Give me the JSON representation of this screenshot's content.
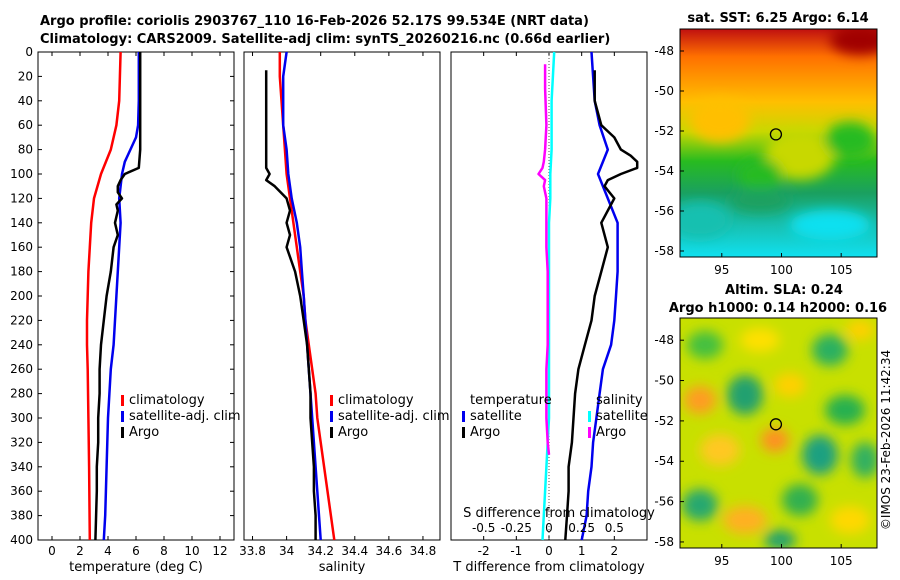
{
  "header": {
    "line1": "Argo profile: coriolis 2903767_110 16-Feb-2026 52.17S 99.534E (NRT data)",
    "line2": "Climatology: CARS2009. Satellite-adj clim: synTS_20260216.nc (0.66d earlier)"
  },
  "colors": {
    "climatology": "#ff0000",
    "satellite": "#0000ee",
    "argo": "#000000",
    "t_diff": "#ff00ff",
    "s_diff": "#00ffff",
    "marker": "#000000"
  },
  "chart_data": [
    {
      "type": "line",
      "panel": "temperature",
      "xlabel": "temperature (deg C)",
      "ylabel": "",
      "xlim": [
        -1,
        13
      ],
      "ylim": [
        400,
        0
      ],
      "xticks": [
        "0",
        "2",
        "4",
        "6",
        "8",
        "10",
        "12"
      ],
      "yticks": [
        "0",
        "20",
        "40",
        "60",
        "80",
        "100",
        "120",
        "140",
        "160",
        "180",
        "200",
        "220",
        "240",
        "260",
        "280",
        "300",
        "320",
        "340",
        "360",
        "380",
        "400"
      ],
      "legend": [
        "climatology",
        "satellite-adj. clim",
        "Argo"
      ],
      "series": [
        {
          "name": "climatology",
          "depth": [
            0,
            20,
            40,
            60,
            80,
            100,
            120,
            140,
            160,
            180,
            200,
            220,
            240,
            260,
            300,
            340,
            400
          ],
          "values": [
            4.9,
            4.85,
            4.8,
            4.6,
            4.2,
            3.5,
            3.0,
            2.8,
            2.7,
            2.6,
            2.55,
            2.5,
            2.5,
            2.55,
            2.6,
            2.65,
            2.7
          ]
        },
        {
          "name": "satellite-adj. clim",
          "depth": [
            0,
            20,
            40,
            60,
            70,
            80,
            90,
            100,
            110,
            120,
            140,
            160,
            180,
            200,
            220,
            240,
            260,
            280,
            300,
            320,
            340,
            360,
            380,
            400
          ],
          "values": [
            6.2,
            6.2,
            6.2,
            6.15,
            6.0,
            5.6,
            5.2,
            5.0,
            4.9,
            4.8,
            4.9,
            4.8,
            4.7,
            4.6,
            4.5,
            4.4,
            4.2,
            4.1,
            4.0,
            3.95,
            3.9,
            3.85,
            3.8,
            3.7
          ]
        },
        {
          "name": "Argo",
          "depth": [
            0,
            20,
            40,
            60,
            80,
            95,
            100,
            105,
            110,
            115,
            120,
            125,
            130,
            140,
            150,
            160,
            180,
            200,
            220,
            240,
            260,
            280,
            300,
            320,
            340,
            360,
            380,
            400
          ],
          "values": [
            6.3,
            6.3,
            6.3,
            6.3,
            6.3,
            6.2,
            5.2,
            4.9,
            4.7,
            4.7,
            5.0,
            4.6,
            4.7,
            4.5,
            4.7,
            4.4,
            4.2,
            3.9,
            3.7,
            3.5,
            3.4,
            3.4,
            3.3,
            3.3,
            3.2,
            3.2,
            3.15,
            3.1
          ]
        }
      ]
    },
    {
      "type": "line",
      "panel": "salinity",
      "xlabel": "salinity",
      "xlim": [
        33.75,
        34.9
      ],
      "ylim": [
        400,
        0
      ],
      "xticks": [
        "33.8",
        "34",
        "34.2",
        "34.4",
        "34.6",
        "34.8"
      ],
      "legend": [
        "climatology",
        "satellite-adj. clim",
        "Argo"
      ],
      "series": [
        {
          "name": "climatology",
          "depth": [
            0,
            20,
            40,
            60,
            80,
            100,
            120,
            140,
            160,
            180,
            200,
            220,
            240,
            260,
            280,
            300,
            320,
            340,
            360,
            380,
            400
          ],
          "values": [
            33.96,
            33.96,
            33.97,
            33.98,
            33.99,
            34.0,
            34.02,
            34.04,
            34.06,
            34.08,
            34.1,
            34.11,
            34.13,
            34.15,
            34.17,
            34.18,
            34.2,
            34.22,
            34.24,
            34.26,
            34.28
          ]
        },
        {
          "name": "satellite-adj. clim",
          "depth": [
            0,
            10,
            20,
            40,
            60,
            80,
            100,
            120,
            140,
            160,
            180,
            200,
            220,
            240,
            260,
            280,
            300,
            320,
            340,
            360,
            380,
            400
          ],
          "values": [
            34.0,
            33.99,
            33.98,
            33.98,
            33.98,
            34.0,
            34.01,
            34.03,
            34.06,
            34.08,
            34.09,
            34.1,
            34.11,
            34.12,
            34.13,
            34.14,
            34.15,
            34.16,
            34.17,
            34.18,
            34.19,
            34.2
          ]
        },
        {
          "name": "Argo",
          "depth": [
            15,
            40,
            60,
            80,
            90,
            95,
            100,
            105,
            110,
            120,
            130,
            140,
            150,
            160,
            180,
            200,
            220,
            240,
            260,
            280,
            300,
            320,
            340,
            360,
            380,
            400
          ],
          "values": [
            33.88,
            33.88,
            33.88,
            33.88,
            33.88,
            33.88,
            33.9,
            33.88,
            33.93,
            34.0,
            34.02,
            34.0,
            34.02,
            34.0,
            34.05,
            34.08,
            34.1,
            34.12,
            34.13,
            34.14,
            34.14,
            34.15,
            34.16,
            34.16,
            34.17,
            34.17
          ]
        }
      ]
    },
    {
      "type": "line",
      "panel": "difference",
      "xlabel": "T difference from climatology",
      "top_xlabel": "S difference from climatology",
      "xlim": [
        -3,
        3
      ],
      "s_xlim": [
        -0.75,
        0.75
      ],
      "ylim": [
        400,
        0
      ],
      "xticks": [
        "-2",
        "-1",
        "0",
        "1",
        "2"
      ],
      "top_xticks": [
        "-0.5",
        "-0.25",
        "0",
        "0.25",
        "0.5"
      ],
      "legend_temperature_title": "temperature",
      "legend_salinity_title": "salinity",
      "legend_temperature": [
        "satellite",
        "Argo"
      ],
      "legend_salinity": [
        "satellite",
        "Argo"
      ],
      "series": [
        {
          "name": "T satellite",
          "depth": [
            0,
            20,
            40,
            60,
            80,
            100,
            120,
            140,
            160,
            180,
            200,
            220,
            240,
            260,
            280,
            300,
            320,
            340,
            360,
            380,
            400
          ],
          "values": [
            1.3,
            1.35,
            1.4,
            1.55,
            1.8,
            1.5,
            1.8,
            2.1,
            2.1,
            2.1,
            2.05,
            2.0,
            1.9,
            1.65,
            1.55,
            1.45,
            1.35,
            1.3,
            1.2,
            1.15,
            1.0
          ]
        },
        {
          "name": "T Argo",
          "depth": [
            15,
            40,
            60,
            70,
            80,
            85,
            90,
            95,
            100,
            105,
            110,
            120,
            140,
            160,
            180,
            200,
            220,
            240,
            260,
            280,
            300,
            320,
            340,
            360,
            380,
            400
          ],
          "values": [
            1.4,
            1.4,
            1.6,
            2.0,
            2.2,
            2.5,
            2.7,
            2.7,
            2.2,
            1.8,
            1.7,
            2.0,
            1.6,
            1.8,
            1.6,
            1.4,
            1.3,
            1.1,
            0.9,
            0.8,
            0.75,
            0.7,
            0.6,
            0.6,
            0.55,
            0.5
          ]
        },
        {
          "name": "S satellite",
          "depth": [
            0,
            20,
            40,
            60,
            80,
            100,
            120,
            140,
            160,
            180,
            200,
            220,
            240,
            260,
            280,
            300,
            320,
            340,
            360,
            380,
            400
          ],
          "values": [
            0.04,
            0.03,
            0.02,
            0.02,
            0.02,
            0.01,
            0.01,
            0.0,
            0.0,
            0.0,
            0.0,
            0.0,
            0.0,
            0.0,
            0.0,
            0.0,
            -0.01,
            -0.02,
            -0.03,
            -0.04,
            -0.05
          ]
        },
        {
          "name": "S Argo",
          "depth": [
            10,
            30,
            60,
            80,
            90,
            95,
            100,
            105,
            110,
            120,
            140,
            160,
            180,
            200,
            220,
            240,
            260,
            280,
            300,
            320,
            330
          ],
          "values": [
            -0.03,
            -0.03,
            -0.02,
            -0.03,
            -0.04,
            -0.05,
            -0.08,
            -0.03,
            -0.04,
            -0.02,
            -0.02,
            -0.02,
            -0.01,
            -0.01,
            -0.01,
            -0.01,
            -0.02,
            -0.02,
            -0.02,
            -0.01,
            0.0
          ]
        }
      ]
    },
    {
      "type": "heatmap",
      "panel": "sst_map",
      "title": "sat. SST: 6.25 Argo: 6.14",
      "xticks": [
        "95",
        "100",
        "105"
      ],
      "yticks": [
        "-48",
        "-50",
        "-52",
        "-54",
        "-56",
        "-58"
      ],
      "xlim": [
        91.5,
        108
      ],
      "ylim": [
        -58.3,
        -46.9
      ],
      "argo_position": {
        "lon": 99.534,
        "lat": -52.17
      }
    },
    {
      "type": "heatmap",
      "panel": "sla_map",
      "title_line1": "Altim. SLA: 0.24",
      "title_line2": "Argo h1000: 0.14 h2000: 0.16",
      "xticks": [
        "95",
        "100",
        "105"
      ],
      "yticks": [
        "-48",
        "-50",
        "-52",
        "-54",
        "-56",
        "-58"
      ],
      "xlim": [
        91.5,
        108
      ],
      "ylim": [
        -58.3,
        -46.9
      ],
      "argo_position": {
        "lon": 99.534,
        "lat": -52.17
      }
    }
  ],
  "credit": "©IMOS 23-Feb-2026 11:42:34"
}
